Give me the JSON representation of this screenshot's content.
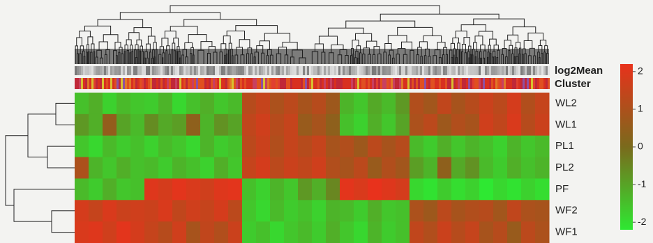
{
  "chart_data": {
    "type": "heatmap",
    "rows": [
      "WL2",
      "WL1",
      "PL1",
      "PL2",
      "PF",
      "WF2",
      "WF1"
    ],
    "categories": [
      null,
      null,
      null,
      null,
      null,
      null,
      null,
      null,
      null,
      null,
      null,
      null,
      null,
      null,
      null,
      null,
      null,
      null,
      null,
      null,
      null,
      null,
      null,
      null,
      null,
      null,
      null,
      null,
      null,
      null,
      null,
      null,
      null,
      null
    ],
    "annotation_labels": [
      "log2Mean",
      "Cluster"
    ],
    "values": [
      [
        -1.5,
        -1.2,
        -1.8,
        -1.4,
        -1.6,
        -1.7,
        -1.3,
        -1.9,
        -1.5,
        -1.2,
        -1.6,
        -1.4,
        1.2,
        1.5,
        1.0,
        1.3,
        0.9,
        1.2,
        0.7,
        -1.3,
        -1.6,
        -1.1,
        -1.4,
        -0.8,
        1.1,
        0.8,
        1.4,
        0.9,
        1.2,
        1.6,
        1.3,
        1.8,
        1.1,
        1.5
      ],
      [
        -0.8,
        -1.2,
        0.5,
        -1.0,
        -1.4,
        -0.6,
        -1.1,
        -0.9,
        0.4,
        -1.3,
        -0.7,
        -1.0,
        1.4,
        1.7,
        1.2,
        1.5,
        0.6,
        0.9,
        0.4,
        -1.5,
        -1.8,
        -1.2,
        -1.6,
        -1.0,
        1.0,
        1.3,
        0.7,
        1.1,
        0.9,
        1.7,
        1.4,
        1.9,
        1.2,
        1.6
      ],
      [
        -1.6,
        -1.9,
        -1.4,
        -1.7,
        -1.5,
        -1.8,
        -1.4,
        -1.6,
        -1.9,
        -1.3,
        -1.7,
        -1.5,
        1.3,
        1.6,
        1.1,
        1.5,
        1.2,
        1.5,
        0.9,
        1.1,
        0.7,
        1.3,
        0.9,
        1.2,
        -1.4,
        -1.7,
        -1.2,
        -1.6,
        -1.3,
        -1.5,
        -1.8,
        -1.3,
        -1.6,
        -1.4
      ],
      [
        1.0,
        -1.3,
        -1.6,
        -1.2,
        -1.5,
        -1.4,
        -1.7,
        -1.3,
        -1.5,
        -1.8,
        -1.2,
        -1.6,
        1.5,
        1.8,
        1.3,
        1.6,
        1.4,
        1.7,
        1.1,
        0.9,
        1.3,
        0.6,
        1.1,
        0.8,
        -0.9,
        -1.3,
        0.4,
        -1.1,
        -0.7,
        -1.4,
        -1.7,
        -1.2,
        -1.5,
        -1.3
      ],
      [
        -1.4,
        -1.7,
        -1.2,
        -1.6,
        -1.5,
        2.0,
        1.8,
        2.1,
        1.9,
        1.7,
        2.0,
        2.1,
        -1.5,
        -1.8,
        -1.3,
        -1.6,
        -0.8,
        -1.2,
        -0.5,
        2.1,
        1.9,
        2.2,
        2.0,
        1.8,
        -1.9,
        -2.1,
        -1.7,
        -2.0,
        -1.8,
        -2.2,
        -1.9,
        -2.1,
        -1.8,
        -2.0
      ],
      [
        1.8,
        1.5,
        1.9,
        1.6,
        1.7,
        1.6,
        1.9,
        1.4,
        1.7,
        1.5,
        1.8,
        1.3,
        -1.6,
        -1.9,
        -1.4,
        -1.7,
        -1.5,
        -1.8,
        -1.3,
        -1.4,
        -1.7,
        -1.2,
        -1.6,
        -1.5,
        1.0,
        0.7,
        1.3,
        0.9,
        1.1,
        1.2,
        0.8,
        1.4,
        1.0,
        0.9
      ],
      [
        1.9,
        2.0,
        1.7,
        2.1,
        1.8,
        1.5,
        1.2,
        1.7,
        0.9,
        1.4,
        1.1,
        1.6,
        -1.7,
        -1.5,
        -1.9,
        -1.6,
        -1.4,
        -1.7,
        -1.2,
        -1.6,
        -1.9,
        -1.3,
        -1.7,
        -1.5,
        1.4,
        1.1,
        1.6,
        1.2,
        1.5,
        0.9,
        1.2,
        0.6,
        1.3,
        1.0
      ]
    ],
    "zlim": [
      -2.2,
      2.2
    ],
    "colorbar_ticks": [
      2,
      1,
      0,
      -1,
      -2
    ],
    "colors": [
      "#2ee832",
      "#7a6a1c",
      "#e8321c"
    ]
  }
}
